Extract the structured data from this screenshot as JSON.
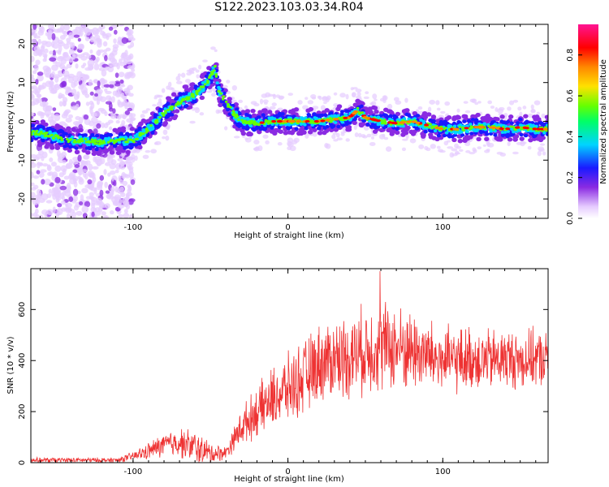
{
  "title": "S122.2023.103.03.34.R04",
  "colors": {
    "trace": "#ee3333",
    "axis": "#000000",
    "background": "#ffffff",
    "colormap": [
      "#ffffff",
      "#e6ccff",
      "#8a2be2",
      "#1a1aff",
      "#00d4ff",
      "#00ff66",
      "#66ff00",
      "#ffe100",
      "#ff8800",
      "#ff0000",
      "#ff1493"
    ]
  },
  "colorbar": {
    "label": "Normalized spectral amplitude",
    "ticks": [
      {
        "value": 0.0,
        "label": "0.0"
      },
      {
        "value": 0.2,
        "label": "0.2"
      },
      {
        "value": 0.4,
        "label": "0.4"
      },
      {
        "value": 0.6,
        "label": "0.6"
      },
      {
        "value": 0.8,
        "label": "0.8"
      }
    ],
    "range": [
      0,
      0.95
    ]
  },
  "chart_data": [
    {
      "type": "heatmap",
      "xlabel": "Height of straight line (km)",
      "ylabel": "Frequency (Hz)",
      "xlim": [
        -166,
        168
      ],
      "ylim": [
        -25,
        25
      ],
      "x_ticks": [
        {
          "value": -100,
          "label": "-100"
        },
        {
          "value": 0,
          "label": "0"
        },
        {
          "value": 100,
          "label": "100"
        }
      ],
      "y_ticks": [
        {
          "value": -20,
          "label": "-20"
        },
        {
          "value": -10,
          "label": "-10"
        },
        {
          "value": 0,
          "label": "0"
        },
        {
          "value": 10,
          "label": "10"
        },
        {
          "value": 20,
          "label": "20"
        }
      ],
      "ridge": {
        "x": [
          -160,
          -150,
          -140,
          -130,
          -120,
          -110,
          -100,
          -90,
          -80,
          -70,
          -60,
          -52,
          -47,
          -45,
          -40,
          -35,
          -30,
          -20,
          -10,
          0,
          10,
          20,
          30,
          40,
          45,
          50,
          60,
          70,
          80,
          90,
          100,
          110,
          120,
          130,
          140,
          150,
          160,
          168
        ],
        "y": [
          -3,
          -4,
          -5,
          -5,
          -5.5,
          -5,
          -5,
          -2,
          2,
          5,
          7,
          10,
          14,
          8,
          5,
          2,
          0,
          -0.5,
          0,
          0,
          0,
          0,
          0.5,
          1,
          3,
          1,
          0,
          -0.5,
          0,
          -1,
          -2,
          -2,
          -1.5,
          -1.5,
          -2,
          -1.5,
          -2,
          -2
        ]
      },
      "dense_region_x": [
        -108,
        168
      ],
      "noisy_region_x": [
        -166,
        -108
      ]
    },
    {
      "type": "line",
      "xlabel": "Height of straight line (km)",
      "ylabel": "SNR (10 * v/v)",
      "xlim": [
        -166,
        168
      ],
      "ylim": [
        0,
        760
      ],
      "x_ticks": [
        {
          "value": -100,
          "label": "-100"
        },
        {
          "value": 0,
          "label": "0"
        },
        {
          "value": 100,
          "label": "100"
        }
      ],
      "y_ticks": [
        {
          "value": 0,
          "label": "0"
        },
        {
          "value": 200,
          "label": "200"
        },
        {
          "value": 400,
          "label": "400"
        },
        {
          "value": 600,
          "label": "600"
        }
      ],
      "envelope": {
        "x": [
          -166,
          -110,
          -100,
          -90,
          -80,
          -70,
          -60,
          -50,
          -40,
          -30,
          -20,
          -10,
          0,
          10,
          20,
          30,
          40,
          50,
          60,
          70,
          80,
          90,
          100,
          110,
          120,
          130,
          140,
          150,
          160,
          168
        ],
        "y": [
          10,
          10,
          25,
          45,
          70,
          80,
          60,
          35,
          40,
          140,
          200,
          250,
          290,
          330,
          390,
          410,
          420,
          440,
          460,
          450,
          440,
          420,
          400,
          400,
          410,
          400,
          410,
          400,
          410,
          400
        ]
      },
      "spread": {
        "x": [
          -166,
          -110,
          -100,
          -80,
          -60,
          -40,
          -30,
          -10,
          10,
          30,
          60,
          100,
          168
        ],
        "y": [
          8,
          8,
          15,
          40,
          55,
          20,
          60,
          100,
          120,
          130,
          150,
          110,
          90
        ]
      },
      "peak_value": 750
    }
  ]
}
